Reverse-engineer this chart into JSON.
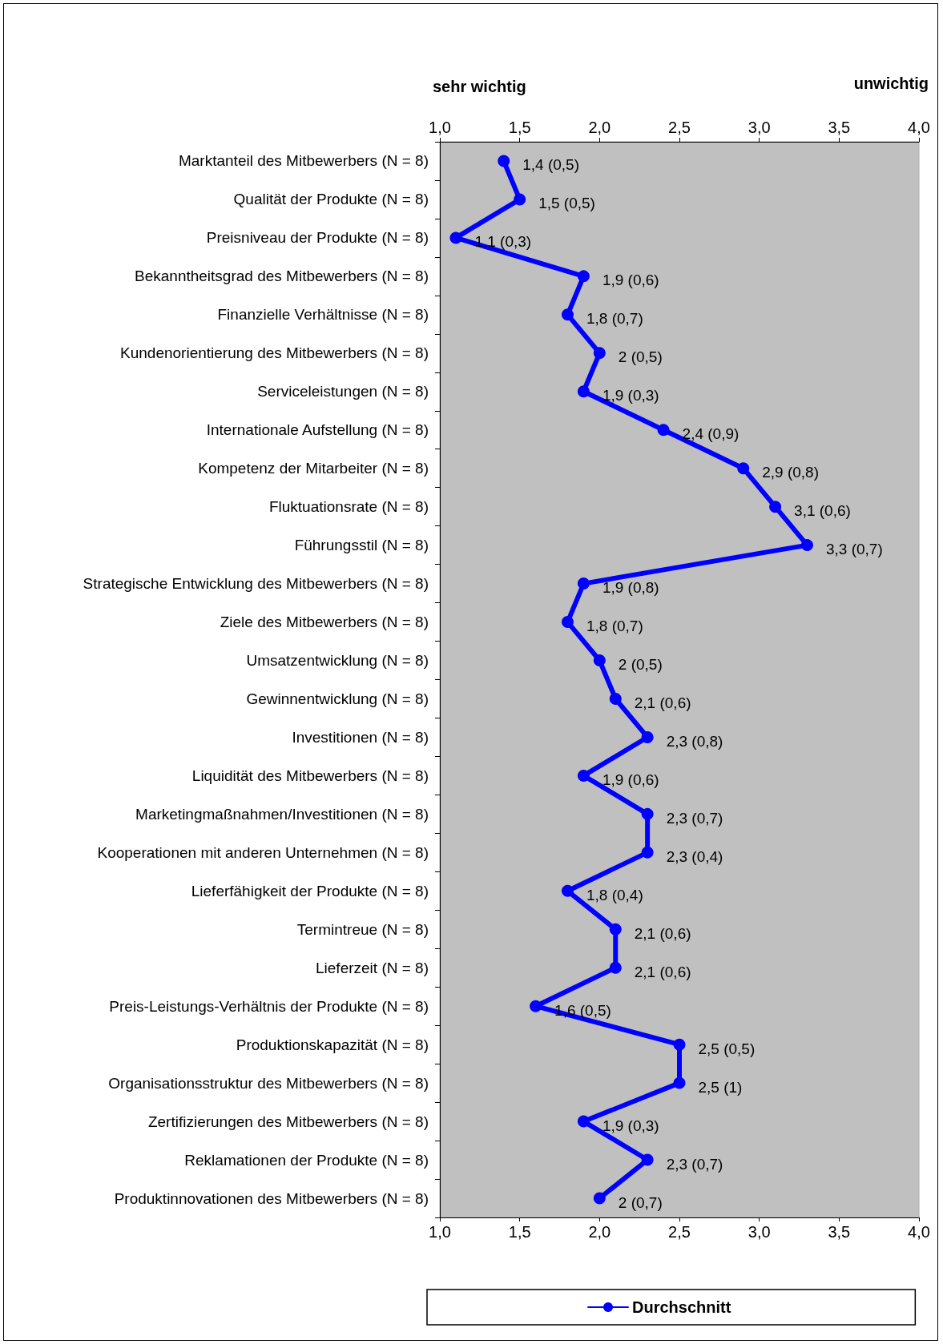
{
  "chart_data": {
    "type": "line",
    "orientation": "horizontal",
    "categories": [
      "Marktanteil des Mitbewerbers (N = 8)",
      "Qualität der Produkte (N = 8)",
      "Preisniveau der Produkte (N = 8)",
      "Bekanntheitsgrad des Mitbewerbers (N = 8)",
      "Finanzielle Verhältnisse (N = 8)",
      "Kundenorientierung des Mitbewerbers (N = 8)",
      "Serviceleistungen (N = 8)",
      "Internationale Aufstellung (N = 8)",
      "Kompetenz der Mitarbeiter (N = 8)",
      "Fluktuationsrate (N = 8)",
      "Führungsstil (N = 8)",
      "Strategische Entwicklung des Mitbewerbers (N = 8)",
      "Ziele des Mitbewerbers (N = 8)",
      "Umsatzentwicklung (N = 8)",
      "Gewinnentwicklung (N = 8)",
      "Investitionen (N = 8)",
      "Liquidität des Mitbewerbers (N = 8)",
      "Marketingmaßnahmen/Investitionen (N = 8)",
      "Kooperationen mit anderen Unternehmen (N = 8)",
      "Lieferfähigkeit der Produkte (N = 8)",
      "Termintreue (N = 8)",
      "Lieferzeit (N = 8)",
      "Preis-Leistungs-Verhältnis der Produkte (N = 8)",
      "Produktionskapazität (N = 8)",
      "Organisationsstruktur des Mitbewerbers (N = 8)",
      "Zertifizierungen des Mitbewerbers (N = 8)",
      "Reklamationen der Produkte (N = 8)",
      "Produktinnovationen des Mitbewerbers (N = 8)"
    ],
    "series": [
      {
        "name": "Durchschnitt",
        "color": "#0000ff",
        "values": [
          1.4,
          1.5,
          1.1,
          1.9,
          1.8,
          2,
          1.9,
          2.4,
          2.9,
          3.1,
          3.3,
          1.9,
          1.8,
          2,
          2.1,
          2.3,
          1.9,
          2.3,
          2.3,
          1.8,
          2.1,
          2.1,
          1.6,
          2.5,
          2.5,
          1.9,
          2.3,
          2
        ],
        "value_labels": [
          "1,4 (0,5)",
          "1,5 (0,5)",
          "1,1 (0,3)",
          "1,9 (0,6)",
          "1,8 (0,7)",
          "2 (0,5)",
          "1,9 (0,3)",
          "2,4 (0,9)",
          "2,9 (0,8)",
          "3,1 (0,6)",
          "3,3 (0,7)",
          "1,9 (0,8)",
          "1,8 (0,7)",
          "2 (0,5)",
          "2,1 (0,6)",
          "2,3 (0,8)",
          "1,9 (0,6)",
          "2,3 (0,7)",
          "2,3 (0,4)",
          "1,8 (0,4)",
          "2,1 (0,6)",
          "2,1 (0,6)",
          "1,6 (0,5)",
          "2,5 (0,5)",
          "2,5 (1)",
          "1,9 (0,3)",
          "2,3 (0,7)",
          "2 (0,7)"
        ]
      }
    ],
    "xlim": [
      1,
      4
    ],
    "xticks": [
      {
        "value": 1,
        "label": "1,0"
      },
      {
        "value": 1.5,
        "label": "1,5"
      },
      {
        "value": 2,
        "label": "2,0"
      },
      {
        "value": 2.5,
        "label": "2,5"
      },
      {
        "value": 3,
        "label": "3,0"
      },
      {
        "value": 3.5,
        "label": "3,5"
      },
      {
        "value": 4,
        "label": "4,0"
      }
    ],
    "x2lim": [
      1,
      4
    ],
    "x2ticks": [
      {
        "value": 1,
        "label": "1,0"
      },
      {
        "value": 1.5,
        "label": "1,5"
      },
      {
        "value": 2,
        "label": "2,0"
      },
      {
        "value": 2.5,
        "label": "2,5"
      },
      {
        "value": 3,
        "label": "3,0"
      },
      {
        "value": 3.5,
        "label": "3,5"
      },
      {
        "value": 4,
        "label": "4,0"
      }
    ],
    "annotations": [
      "sehr wichtig",
      "unwichtig"
    ],
    "legend": "bottom",
    "grid": false,
    "marker": "circle",
    "line_style": "solid"
  }
}
